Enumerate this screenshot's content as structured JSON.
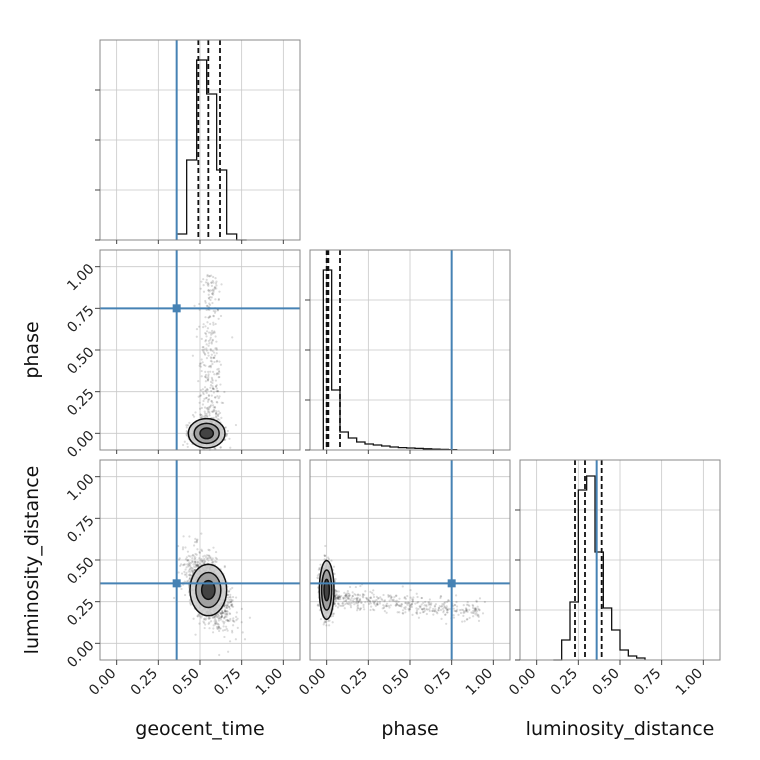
{
  "chart_data": {
    "type": "corner",
    "parameters": [
      "geocent_time",
      "phase",
      "luminosity_distance"
    ],
    "range": [
      -0.1,
      1.1
    ],
    "ticks": [
      0.0,
      0.25,
      0.5,
      0.75,
      1.0
    ],
    "tick_labels": [
      "0.00",
      "0.25",
      "0.50",
      "0.75",
      "1.00"
    ],
    "truths": {
      "geocent_time": 0.36,
      "phase": 0.75,
      "luminosity_distance": 0.36
    },
    "quantiles": {
      "geocent_time": [
        0.49,
        0.55,
        0.62
      ],
      "phase": [
        0.0,
        0.01,
        0.08
      ],
      "luminosity_distance": [
        0.23,
        0.29,
        0.39
      ]
    },
    "histograms": {
      "geocent_time": {
        "edges": [
          0.36,
          0.42,
          0.48,
          0.54,
          0.6,
          0.66,
          0.72,
          0.78
        ],
        "counts": [
          0.03,
          0.4,
          0.9,
          0.73,
          0.35,
          0.03,
          0.0
        ]
      },
      "phase": {
        "edges": [
          -0.02,
          0.03,
          0.08,
          0.13,
          0.18,
          0.23,
          0.28,
          0.33,
          0.38,
          0.43,
          0.48,
          0.53,
          0.58,
          0.63,
          0.68,
          0.73,
          0.78
        ],
        "counts": [
          0.9,
          0.3,
          0.09,
          0.06,
          0.04,
          0.03,
          0.025,
          0.02,
          0.015,
          0.012,
          0.01,
          0.008,
          0.006,
          0.004,
          0.003,
          0.002
        ]
      },
      "luminosity_distance": {
        "edges": [
          0.1,
          0.15,
          0.2,
          0.25,
          0.3,
          0.35,
          0.4,
          0.45,
          0.5,
          0.55,
          0.6,
          0.65
        ],
        "counts": [
          0.0,
          0.1,
          0.29,
          0.85,
          0.92,
          0.54,
          0.26,
          0.15,
          0.05,
          0.02,
          0.01
        ]
      }
    },
    "scatter": {
      "phase_vs_geocent_time": {
        "center": [
          0.54,
          0.0
        ],
        "spread": [
          0.05,
          0.04
        ],
        "tail": "y-up-to-0.95"
      },
      "luminosity_distance_vs_geocent_time": {
        "center": [
          0.55,
          0.32
        ],
        "spread": [
          0.05,
          0.07
        ],
        "tail": "diagonal"
      },
      "luminosity_distance_vs_phase": {
        "center": [
          0.0,
          0.32
        ],
        "spread": [
          0.02,
          0.08
        ],
        "tail": "x-up-to-0.95"
      }
    }
  }
}
